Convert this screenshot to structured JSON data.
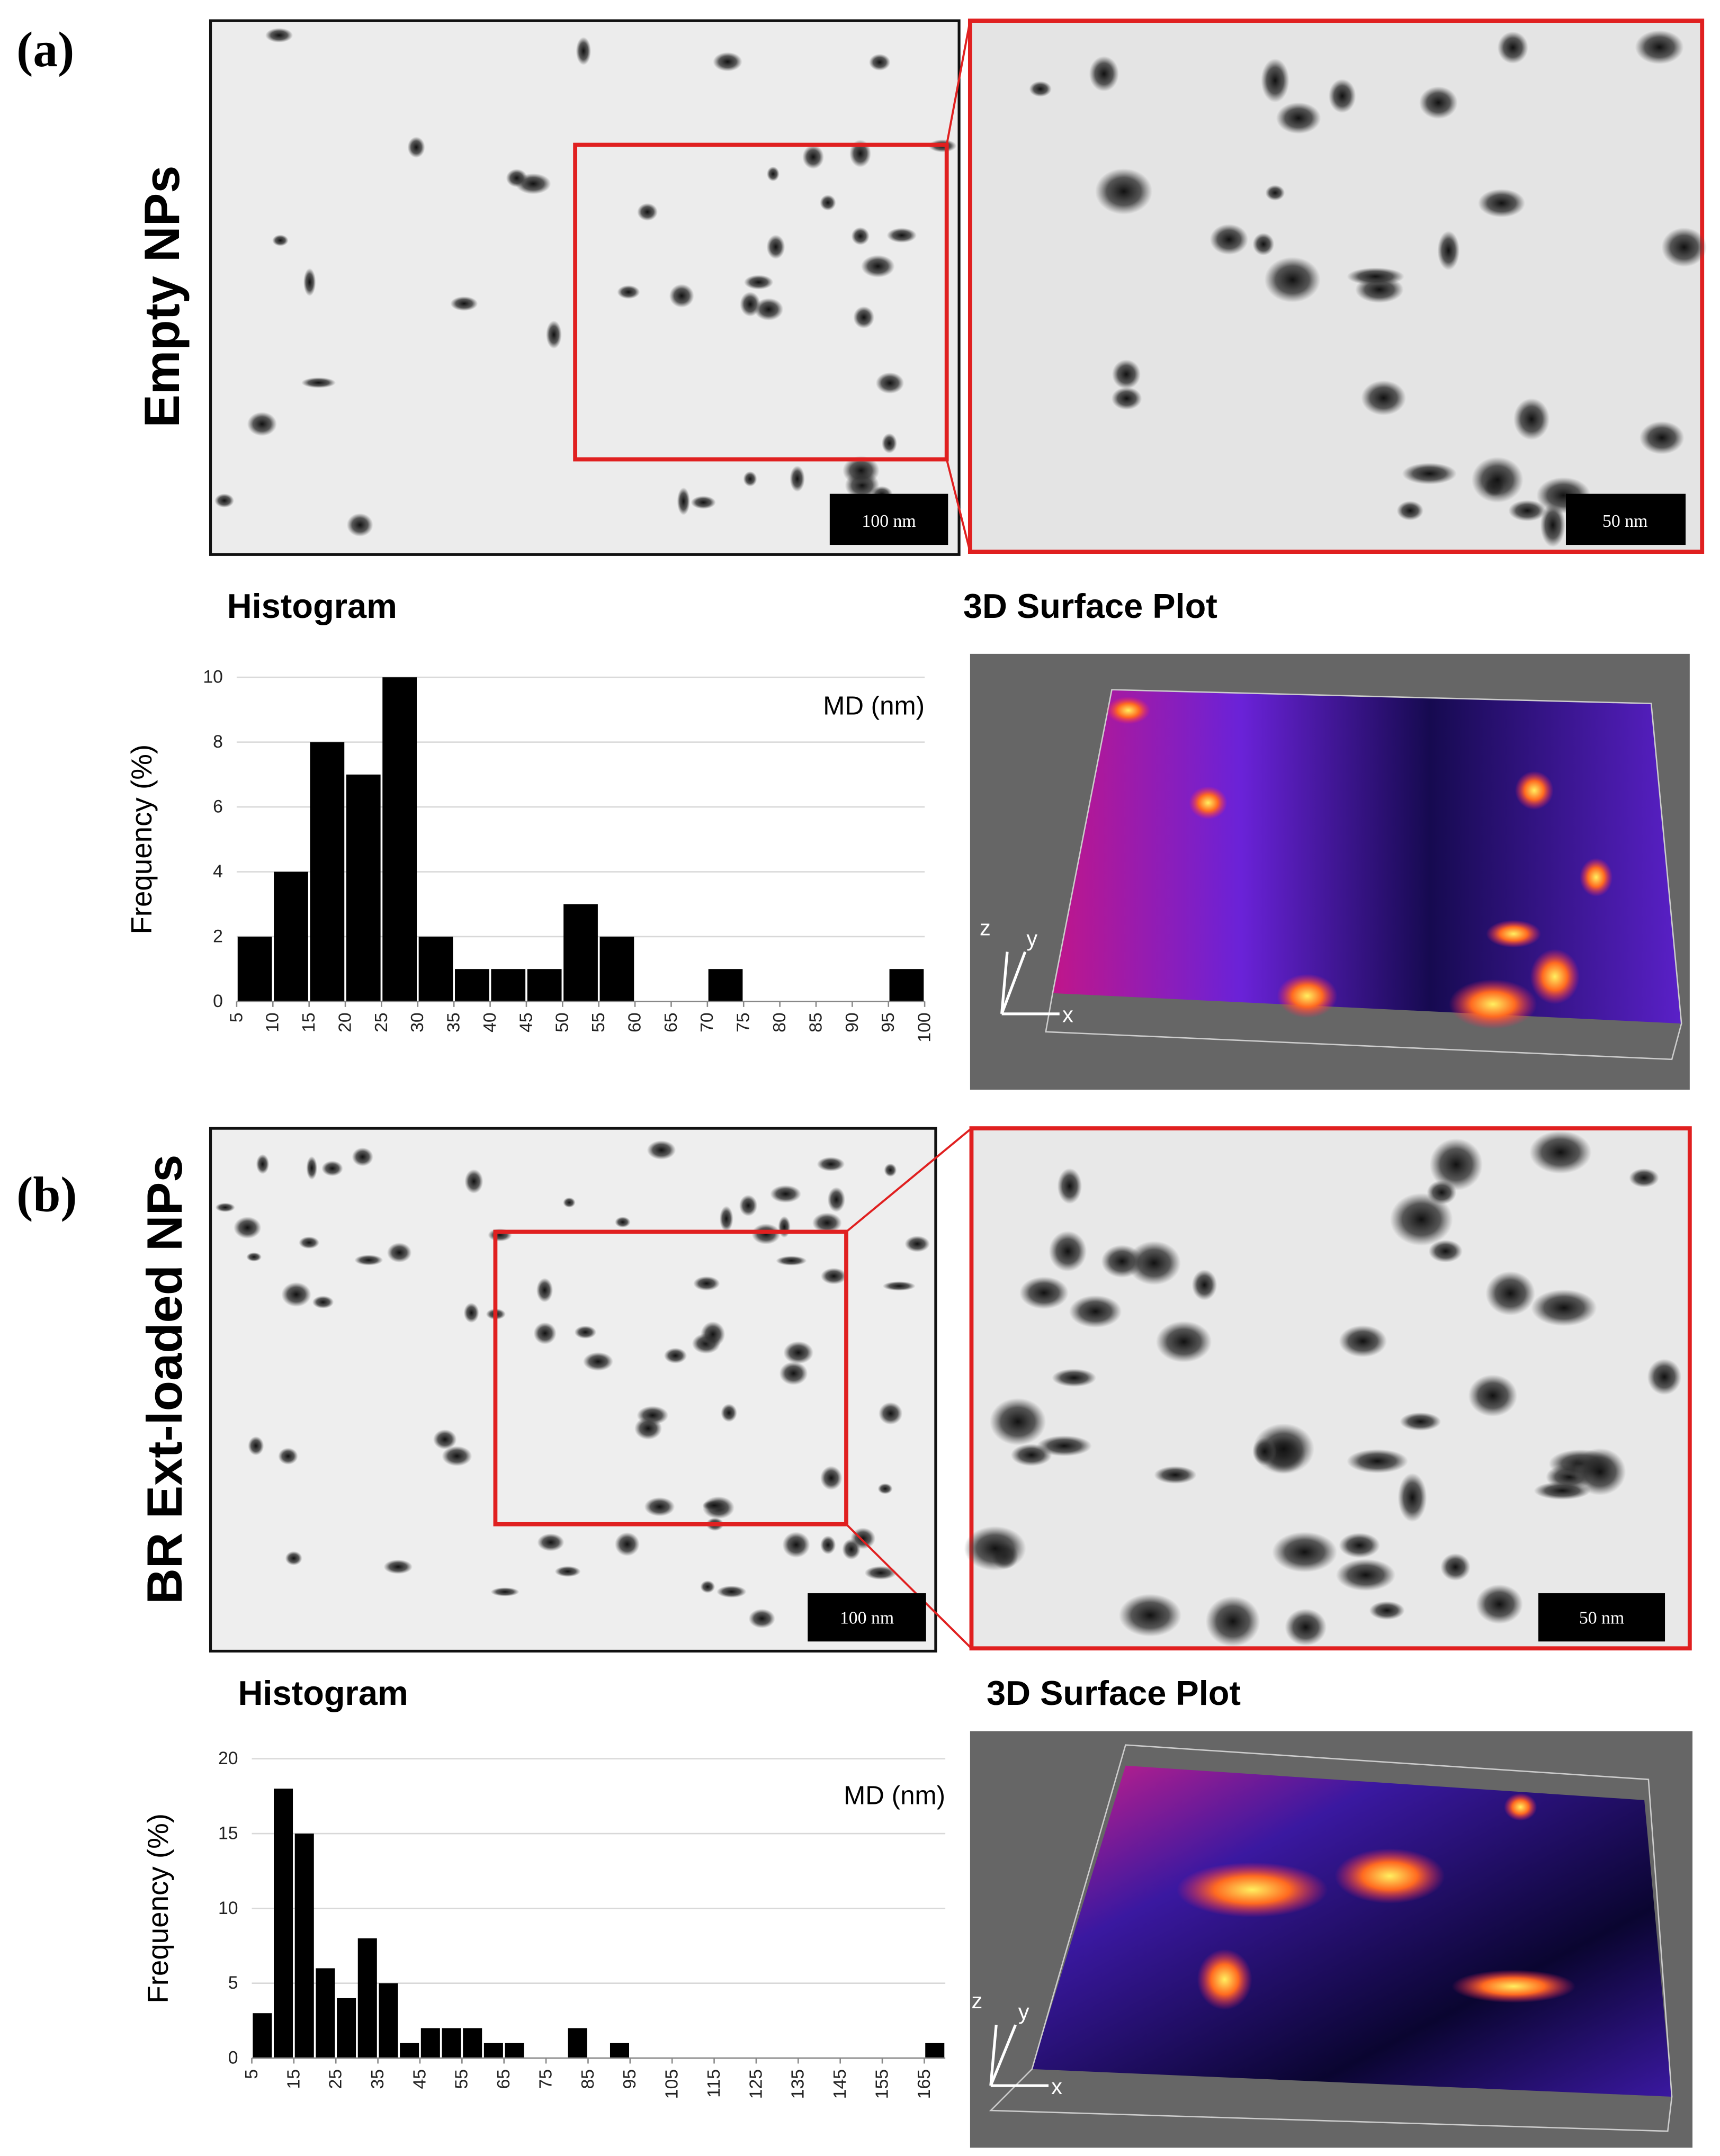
{
  "panels": [
    {
      "label": "(a)",
      "sample": "Empty NPs",
      "scale_bars": [
        "100 nm",
        "50 nm"
      ],
      "histogram_title": "Histogram",
      "surface_title": "3D Surface Plot",
      "axes": [
        "x",
        "y",
        "z"
      ]
    },
    {
      "label": "(b)",
      "sample": "BR Ext-loaded NPs",
      "scale_bars": [
        "100 nm",
        "50 nm"
      ],
      "histogram_title": "Histogram",
      "surface_title": "3D Surface Plot",
      "axes": [
        "x",
        "y",
        "z"
      ]
    }
  ],
  "chart_data": [
    {
      "type": "histogram",
      "ylabel": "Frequency (%)",
      "annotation": "MD (nm)",
      "color": "#000000",
      "bins": [
        5,
        10,
        15,
        20,
        25,
        30,
        35,
        40,
        45,
        50,
        55,
        60,
        65,
        70,
        75,
        80,
        85,
        90,
        95,
        100
      ],
      "values": [
        2,
        4,
        8,
        7,
        10,
        2,
        1,
        1,
        1,
        3,
        2,
        0,
        0,
        1,
        0,
        0,
        0,
        0,
        1
      ],
      "xlim": [
        5,
        100
      ],
      "xticks": [
        5,
        10,
        15,
        20,
        25,
        30,
        35,
        40,
        45,
        50,
        55,
        60,
        65,
        70,
        75,
        80,
        85,
        90,
        95,
        100
      ],
      "ylim": [
        0,
        10
      ],
      "yticks": [
        0,
        2,
        4,
        6,
        8,
        10
      ],
      "grid": true
    },
    {
      "type": "histogram",
      "ylabel": "Frequency (%)",
      "annotation": "MD (nm)",
      "color": "#000000",
      "bins": [
        5,
        10,
        15,
        20,
        25,
        30,
        35,
        40,
        45,
        50,
        55,
        60,
        65,
        70,
        75,
        80,
        85,
        90,
        95,
        100,
        105,
        110,
        115,
        120,
        125,
        130,
        135,
        140,
        145,
        150,
        155,
        160,
        165,
        170
      ],
      "values": [
        3,
        18,
        15,
        6,
        4,
        8,
        5,
        1,
        2,
        2,
        2,
        1,
        1,
        0,
        0,
        2,
        0,
        1,
        0,
        0,
        0,
        0,
        0,
        0,
        0,
        0,
        0,
        0,
        0,
        0,
        0,
        0,
        1
      ],
      "xlim": [
        5,
        170
      ],
      "xticks": [
        5,
        15,
        25,
        35,
        45,
        55,
        65,
        75,
        85,
        95,
        105,
        115,
        125,
        135,
        145,
        155,
        165
      ],
      "ylim": [
        0,
        20
      ],
      "yticks": [
        0,
        5,
        10,
        15,
        20
      ],
      "grid": true
    }
  ]
}
